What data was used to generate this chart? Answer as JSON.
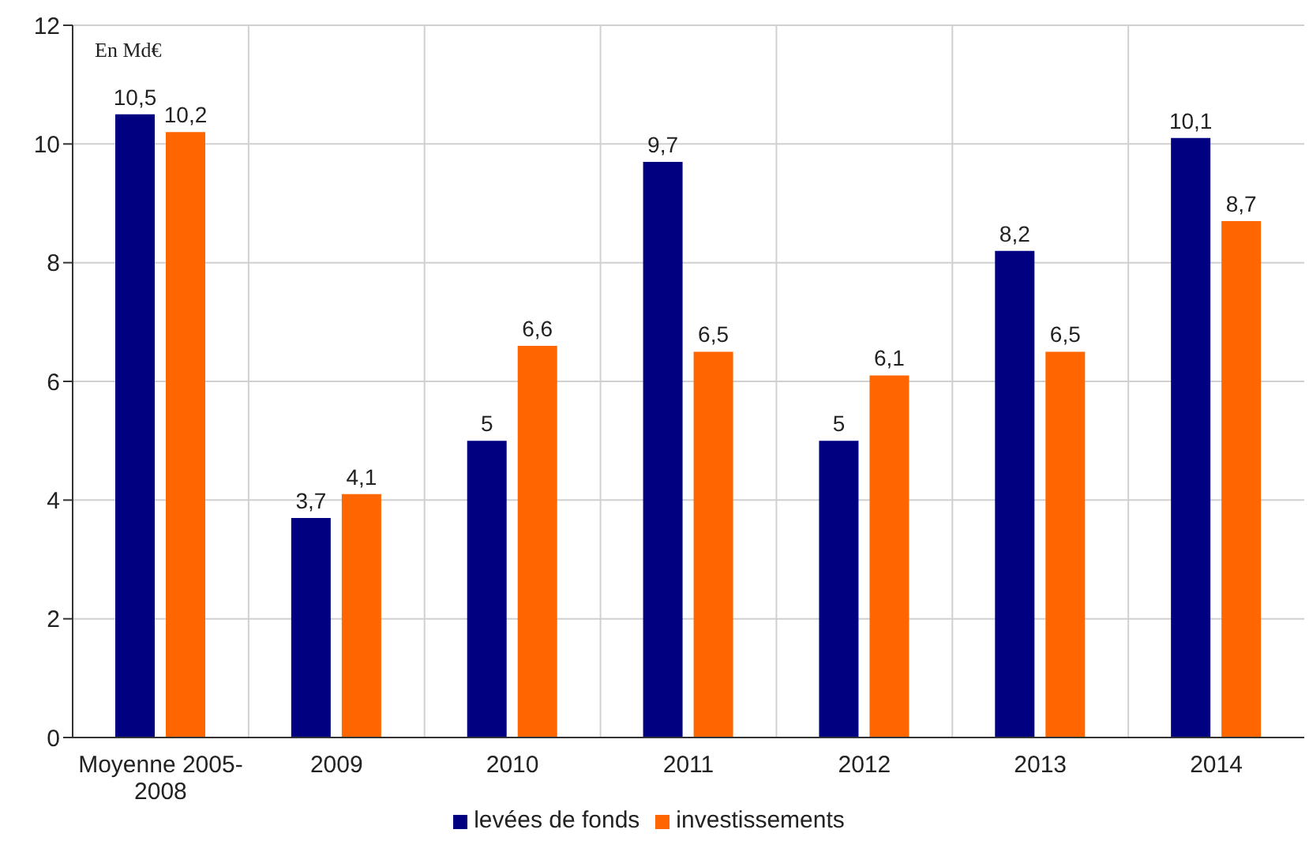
{
  "chart_data": {
    "type": "bar",
    "ylabel": "En Md€",
    "categories": [
      "Moyenne 2005-2008",
      "2009",
      "2010",
      "2011",
      "2012",
      "2013",
      "2014"
    ],
    "series": [
      {
        "name": "levées de fonds",
        "color": "#000080",
        "values": [
          10.5,
          3.7,
          5,
          9.7,
          5,
          8.2,
          10.1
        ],
        "value_labels": [
          "10,5",
          "3,7",
          "5",
          "9,7",
          "5",
          "8,2",
          "10,1"
        ]
      },
      {
        "name": "investissements",
        "color": "#ff6600",
        "values": [
          10.2,
          4.1,
          6.6,
          6.5,
          6.1,
          6.5,
          8.7
        ],
        "value_labels": [
          "10,2",
          "4,1",
          "6,6",
          "6,5",
          "6,1",
          "6,5",
          "8,7"
        ]
      }
    ],
    "ylim": [
      0,
      12
    ],
    "yticks": [
      0,
      2,
      4,
      6,
      8,
      10,
      12
    ],
    "grid": true,
    "legend": "bottom"
  }
}
